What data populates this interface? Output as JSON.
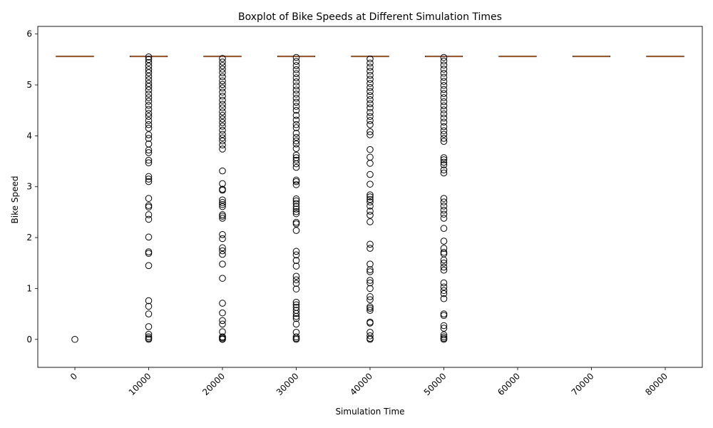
{
  "chart_data": {
    "type": "boxplot",
    "title": "Boxplot of Bike Speeds at Different Simulation Times",
    "xlabel": "Simulation Time",
    "ylabel": "Bike Speed",
    "ylim": [
      -0.55,
      6.15
    ],
    "yticks": [
      0,
      1,
      2,
      3,
      4,
      5,
      6
    ],
    "categories": [
      "0",
      "10000",
      "20000",
      "30000",
      "40000",
      "50000",
      "60000",
      "70000",
      "80000"
    ],
    "boxes": [
      {
        "category": "0",
        "q1": 5.56,
        "median": 5.56,
        "q3": 5.56,
        "whisker_low": 5.56,
        "whisker_high": 5.56,
        "outliers": [
          0
        ]
      },
      {
        "category": "10000",
        "q1": 5.56,
        "median": 5.56,
        "q3": 5.56,
        "whisker_low": 5.56,
        "whisker_high": 5.56,
        "outliers": [
          0,
          0.02,
          0.05,
          0.1,
          0.25,
          0.5,
          0.65,
          0.76,
          1.45,
          1.69,
          1.72,
          2.01,
          2.36,
          2.45,
          2.6,
          2.63,
          2.77,
          3.1,
          3.15,
          3.2,
          3.47,
          3.52,
          3.67,
          3.72,
          3.84,
          3.95,
          4.02,
          4.15,
          4.22,
          4.3,
          4.38,
          4.44,
          4.52,
          4.6,
          4.68,
          4.75,
          4.82,
          4.9,
          4.97,
          5.03,
          5.1,
          5.17,
          5.24,
          5.3,
          5.37,
          5.44,
          5.5,
          5.55
        ]
      },
      {
        "category": "20000",
        "q1": 5.56,
        "median": 5.56,
        "q3": 5.56,
        "whisker_low": 5.56,
        "whisker_high": 5.56,
        "outliers": [
          0,
          0.01,
          0.03,
          0.05,
          0.15,
          0.3,
          0.37,
          0.52,
          0.71,
          1.2,
          1.48,
          1.67,
          1.74,
          1.8,
          1.98,
          2.06,
          2.38,
          2.42,
          2.45,
          2.61,
          2.65,
          2.69,
          2.74,
          2.93,
          2.95,
          3.06,
          3.31,
          3.74,
          3.82,
          3.9,
          3.96,
          4.03,
          4.11,
          4.19,
          4.26,
          4.33,
          4.4,
          4.47,
          4.55,
          4.62,
          4.7,
          4.78,
          4.86,
          4.94,
          5.01,
          5.08,
          5.16,
          5.24,
          5.31,
          5.38,
          5.45,
          5.52
        ]
      },
      {
        "category": "30000",
        "q1": 5.56,
        "median": 5.56,
        "q3": 5.56,
        "whisker_low": 5.56,
        "whisker_high": 5.56,
        "outliers": [
          0,
          0.02,
          0.05,
          0.14,
          0.3,
          0.41,
          0.45,
          0.51,
          0.57,
          0.63,
          0.68,
          0.73,
          0.99,
          1.1,
          1.17,
          1.24,
          1.44,
          1.55,
          1.66,
          1.73,
          2.14,
          2.27,
          2.3,
          2.47,
          2.51,
          2.56,
          2.61,
          2.67,
          2.72,
          2.76,
          3.04,
          3.1,
          3.13,
          3.38,
          3.45,
          3.52,
          3.57,
          3.62,
          3.75,
          3.84,
          3.9,
          3.97,
          4.05,
          4.16,
          4.22,
          4.31,
          4.4,
          4.5,
          4.58,
          4.66,
          4.74,
          4.82,
          4.9,
          4.98,
          5.06,
          5.14,
          5.22,
          5.3,
          5.38,
          5.46,
          5.54
        ]
      },
      {
        "category": "40000",
        "q1": 5.56,
        "median": 5.56,
        "q3": 5.56,
        "whisker_low": 5.56,
        "whisker_high": 5.56,
        "outliers": [
          0,
          0.02,
          0.07,
          0.14,
          0.32,
          0.34,
          0.57,
          0.61,
          0.64,
          0.78,
          0.84,
          1.0,
          1.11,
          1.16,
          1.33,
          1.37,
          1.48,
          1.79,
          1.87,
          2.31,
          2.44,
          2.52,
          2.62,
          2.7,
          2.75,
          2.8,
          2.84,
          3.05,
          3.24,
          3.46,
          3.58,
          3.73,
          4.02,
          4.08,
          4.22,
          4.3,
          4.38,
          4.46,
          4.55,
          4.63,
          4.71,
          4.79,
          4.87,
          4.95,
          5.03,
          5.11,
          5.19,
          5.27,
          5.35,
          5.43,
          5.51
        ]
      },
      {
        "category": "50000",
        "q1": 5.56,
        "median": 5.56,
        "q3": 5.56,
        "whisker_low": 5.56,
        "whisker_high": 5.56,
        "outliers": [
          0,
          0.02,
          0.05,
          0.09,
          0.22,
          0.27,
          0.47,
          0.5,
          0.8,
          0.9,
          0.96,
          1.03,
          1.11,
          1.36,
          1.42,
          1.5,
          1.56,
          1.68,
          1.71,
          1.79,
          1.93,
          2.18,
          2.38,
          2.46,
          2.54,
          2.62,
          2.7,
          2.77,
          3.27,
          3.33,
          3.43,
          3.48,
          3.53,
          3.57,
          3.89,
          3.95,
          4.03,
          4.1,
          4.18,
          4.27,
          4.35,
          4.43,
          4.51,
          4.59,
          4.67,
          4.75,
          4.83,
          4.91,
          4.99,
          5.07,
          5.15,
          5.23,
          5.31,
          5.39,
          5.47,
          5.54
        ]
      },
      {
        "category": "60000",
        "q1": 5.56,
        "median": 5.56,
        "q3": 5.56,
        "whisker_low": 5.56,
        "whisker_high": 5.56,
        "outliers": []
      },
      {
        "category": "70000",
        "q1": 5.56,
        "median": 5.56,
        "q3": 5.56,
        "whisker_low": 5.56,
        "whisker_high": 5.56,
        "outliers": []
      },
      {
        "category": "80000",
        "q1": 5.56,
        "median": 5.56,
        "q3": 5.56,
        "whisker_low": 5.56,
        "whisker_high": 5.56,
        "outliers": []
      }
    ],
    "colors": {
      "box": "#000000",
      "median": "#e07b39",
      "outlier_edge": "#000000"
    },
    "grid": false,
    "legend": "none"
  }
}
